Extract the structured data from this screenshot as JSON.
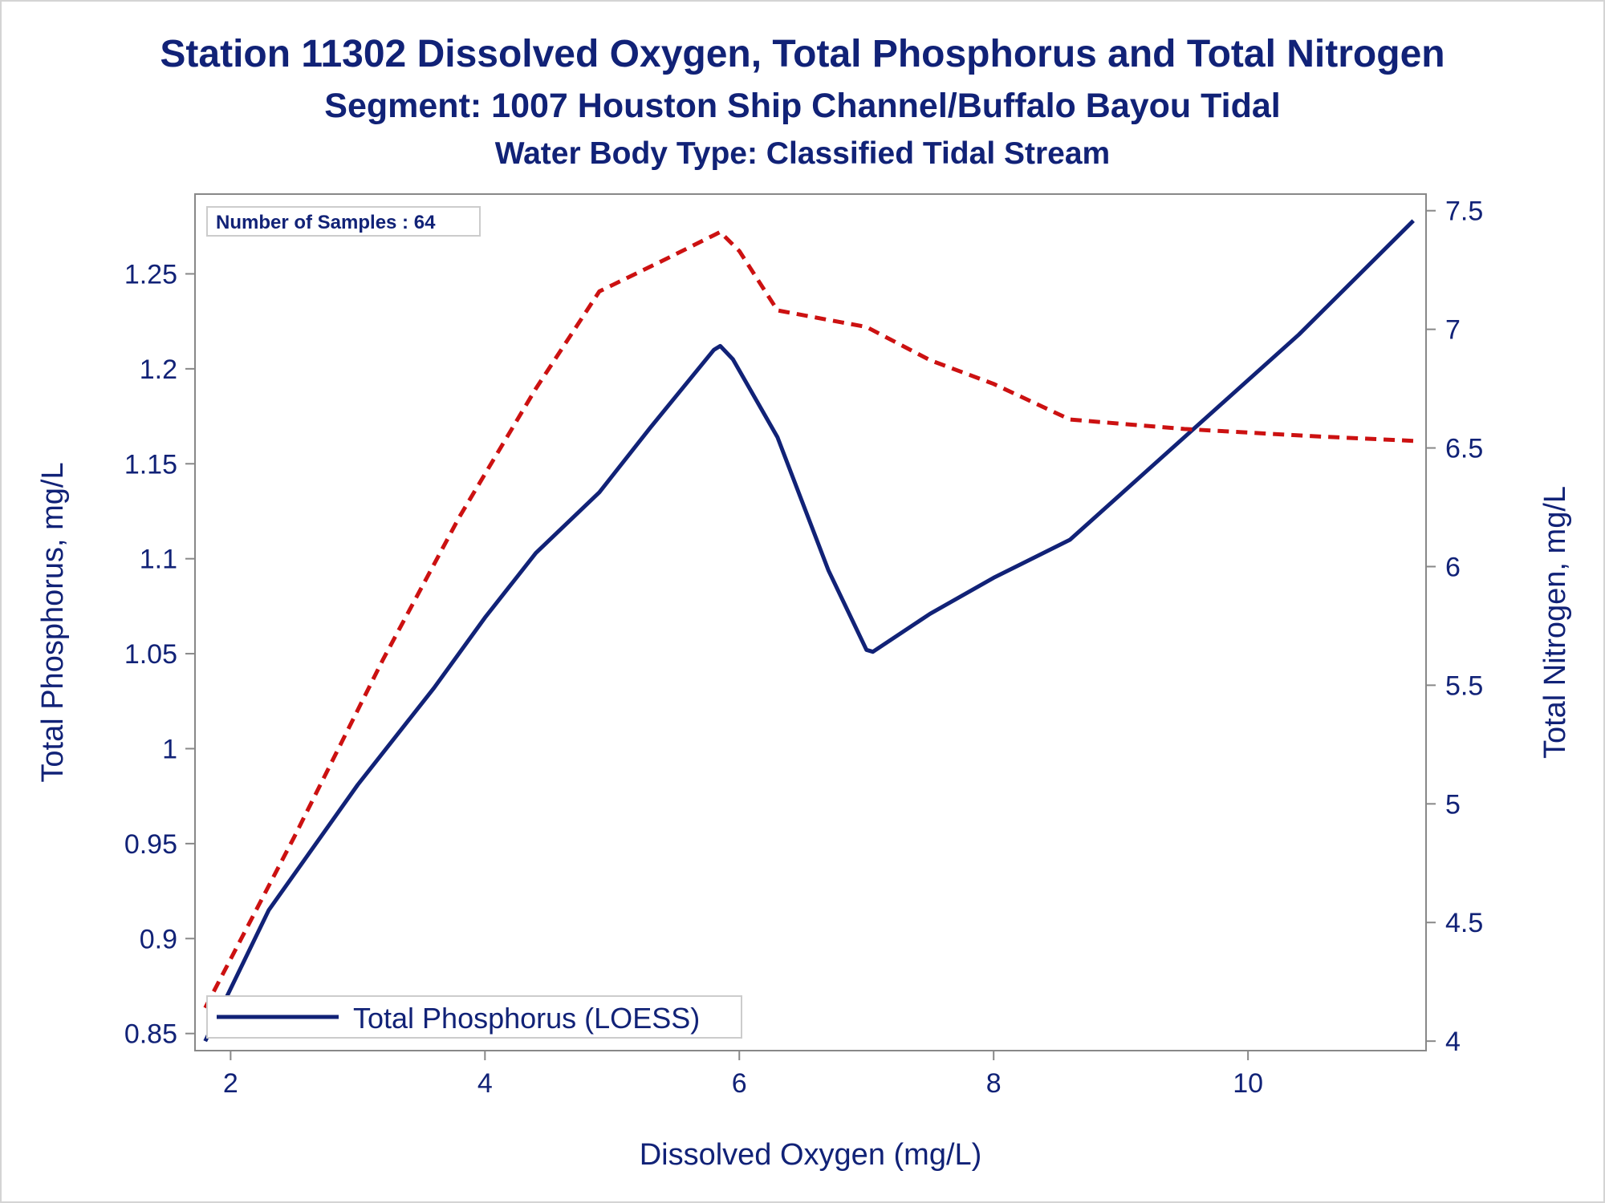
{
  "chart_data": {
    "type": "line",
    "title": "Station 11302  Dissolved Oxygen, Total Phosphorus and Total Nitrogen",
    "subtitle": "Segment: 1007  Houston Ship Channel/Buffalo Bayou Tidal",
    "subtitle2": "Water Body Type: Classified Tidal Stream",
    "xlabel": "Dissolved Oxygen (mg/L)",
    "ylabel": "Total Phosphorus, mg/L",
    "y2label": "Total Nitrogen, mg/L",
    "annotation": "Number of Samples : 64",
    "xlim": [
      1.72,
      11.4
    ],
    "ylim": [
      0.841,
      1.292
    ],
    "y2lim": [
      3.96,
      7.57
    ],
    "xticks": [
      "2",
      "4",
      "6",
      "8",
      "10"
    ],
    "yticks": [
      "0.85",
      "0.9",
      "0.95",
      "1",
      "1.05",
      "1.1",
      "1.15",
      "1.2",
      "1.25"
    ],
    "y2ticks": [
      "4",
      "4.5",
      "5",
      "5.5",
      "6",
      "6.5",
      "7",
      "7.5"
    ],
    "legend_position": "bottom-left",
    "grid": false,
    "series": [
      {
        "name": "Total Phosphorus (LOESS)",
        "axis": "left",
        "color": "#112277",
        "dash": "solid",
        "x": [
          1.8,
          2.3,
          3.0,
          3.6,
          4.0,
          4.4,
          4.9,
          5.3,
          5.8,
          5.85,
          5.95,
          6.3,
          6.7,
          7.0,
          7.05,
          7.5,
          8.0,
          8.6,
          9.2,
          9.8,
          10.4,
          11.3
        ],
        "y": [
          0.846,
          0.915,
          0.981,
          1.032,
          1.069,
          1.103,
          1.135,
          1.169,
          1.21,
          1.212,
          1.205,
          1.164,
          1.094,
          1.052,
          1.051,
          1.071,
          1.09,
          1.11,
          1.146,
          1.182,
          1.218,
          1.278
        ]
      },
      {
        "name": "",
        "axis": "right",
        "color": "#cc1111",
        "dash": "dashed",
        "x": [
          1.8,
          2.5,
          3.2,
          3.8,
          4.4,
          4.9,
          5.4,
          5.85,
          6.0,
          6.3,
          6.8,
          7.0,
          7.5,
          8.0,
          8.6,
          9.5,
          10.5,
          11.3
        ],
        "y": [
          4.14,
          4.86,
          5.61,
          6.21,
          6.75,
          7.16,
          7.29,
          7.41,
          7.33,
          7.08,
          7.03,
          7.01,
          6.87,
          6.77,
          6.62,
          6.58,
          6.55,
          6.53
        ]
      }
    ]
  }
}
